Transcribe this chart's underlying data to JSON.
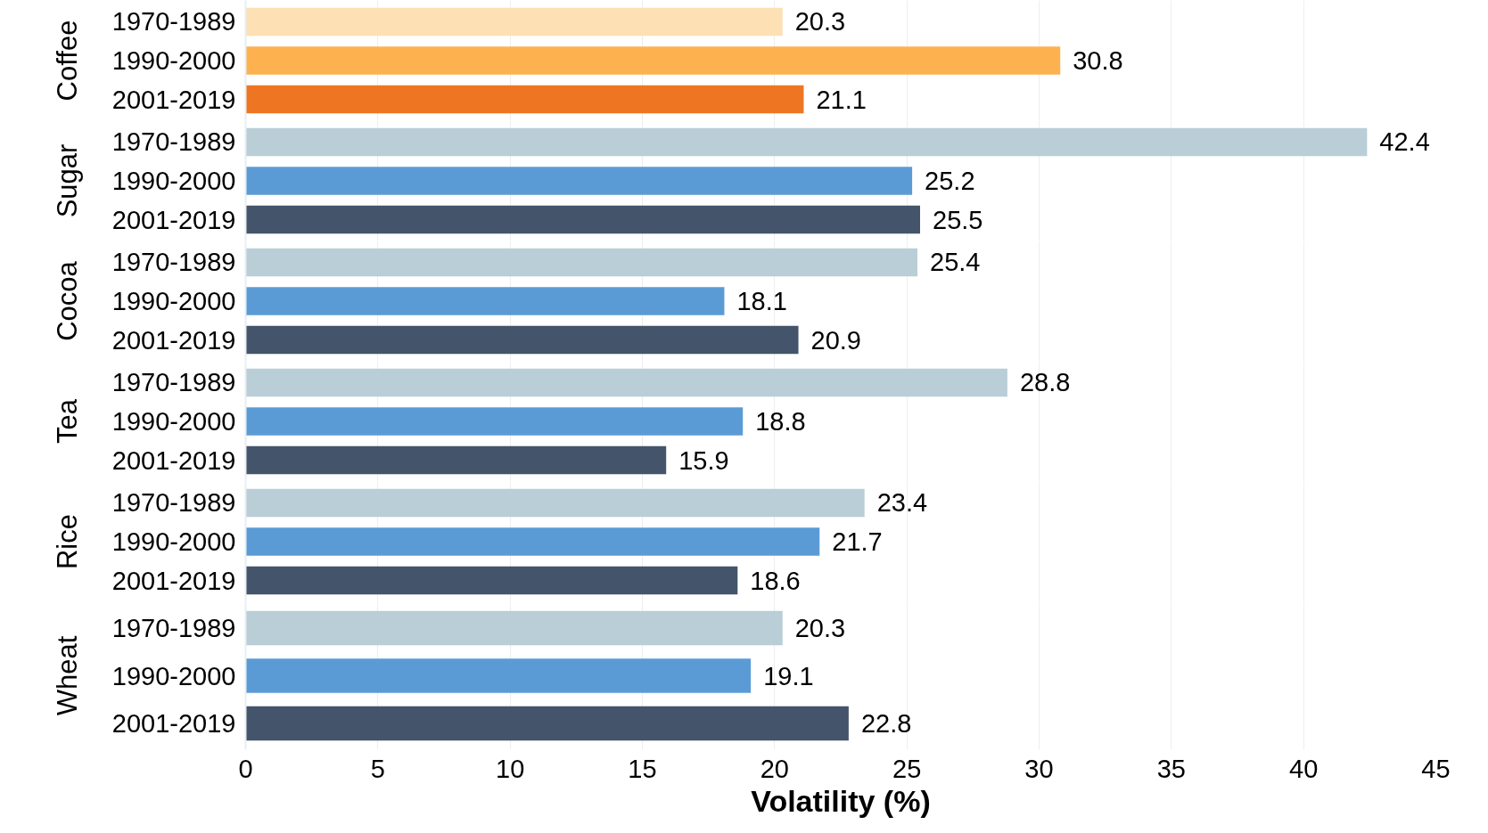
{
  "chart_data": [
    {
      "type": "bar",
      "orientation": "horizontal",
      "ylabel": "Coffee",
      "categories": [
        "1970-1989",
        "1990-2000",
        "2001-2019"
      ],
      "values": [
        20.3,
        30.8,
        21.1
      ],
      "colors": [
        "#fde0b4",
        "#fdb24f",
        "#ee7623"
      ],
      "xlim": [
        0,
        45
      ],
      "xticks": [
        0,
        5,
        10,
        15,
        20,
        25,
        30,
        35,
        40,
        45
      ],
      "grid": "x",
      "data_labels": true,
      "tick_labels": "y"
    },
    {
      "type": "bar",
      "orientation": "horizontal",
      "ylabel": "Sugar",
      "categories": [
        "1970-1989",
        "1990-2000",
        "2001-2019"
      ],
      "values": [
        42.4,
        25.2,
        25.5
      ],
      "colors": [
        "#b9ced6",
        "#5b9bd5",
        "#44546a"
      ],
      "xlim": [
        0,
        45
      ],
      "xticks": [
        0,
        5,
        10,
        15,
        20,
        25,
        30,
        35,
        40,
        45
      ],
      "grid": "x",
      "data_labels": true,
      "tick_labels": "y"
    },
    {
      "type": "bar",
      "orientation": "horizontal",
      "ylabel": "Cocoa",
      "categories": [
        "1970-1989",
        "1990-2000",
        "2001-2019"
      ],
      "values": [
        25.4,
        18.1,
        20.9
      ],
      "colors": [
        "#b9ced6",
        "#5b9bd5",
        "#44546a"
      ],
      "xlim": [
        0,
        45
      ],
      "xticks": [
        0,
        5,
        10,
        15,
        20,
        25,
        30,
        35,
        40,
        45
      ],
      "grid": "x",
      "data_labels": true,
      "tick_labels": "y"
    },
    {
      "type": "bar",
      "orientation": "horizontal",
      "ylabel": "Tea",
      "categories": [
        "1970-1989",
        "1990-2000",
        "2001-2019"
      ],
      "values": [
        28.8,
        18.8,
        15.9
      ],
      "colors": [
        "#b9ced6",
        "#5b9bd5",
        "#44546a"
      ],
      "xlim": [
        0,
        45
      ],
      "xticks": [
        0,
        5,
        10,
        15,
        20,
        25,
        30,
        35,
        40,
        45
      ],
      "grid": "x",
      "data_labels": true,
      "tick_labels": "y"
    },
    {
      "type": "bar",
      "orientation": "horizontal",
      "ylabel": "Rice",
      "categories": [
        "1970-1989",
        "1990-2000",
        "2001-2019"
      ],
      "values": [
        23.4,
        21.7,
        18.6
      ],
      "colors": [
        "#b9ced6",
        "#5b9bd5",
        "#44546a"
      ],
      "xlim": [
        0,
        45
      ],
      "xticks": [
        0,
        5,
        10,
        15,
        20,
        25,
        30,
        35,
        40,
        45
      ],
      "grid": "x",
      "data_labels": true,
      "tick_labels": "y"
    },
    {
      "type": "bar",
      "orientation": "horizontal",
      "ylabel": "Wheat",
      "xlabel": "Volatility (%)",
      "categories": [
        "1970-1989",
        "1990-2000",
        "2001-2019"
      ],
      "values": [
        20.3,
        19.1,
        22.8
      ],
      "colors": [
        "#b9ced6",
        "#5b9bd5",
        "#44546a"
      ],
      "xlim": [
        0,
        45
      ],
      "xticks": [
        0,
        5,
        10,
        15,
        20,
        25,
        30,
        35,
        40,
        45
      ],
      "grid": "x",
      "data_labels": true
    }
  ]
}
